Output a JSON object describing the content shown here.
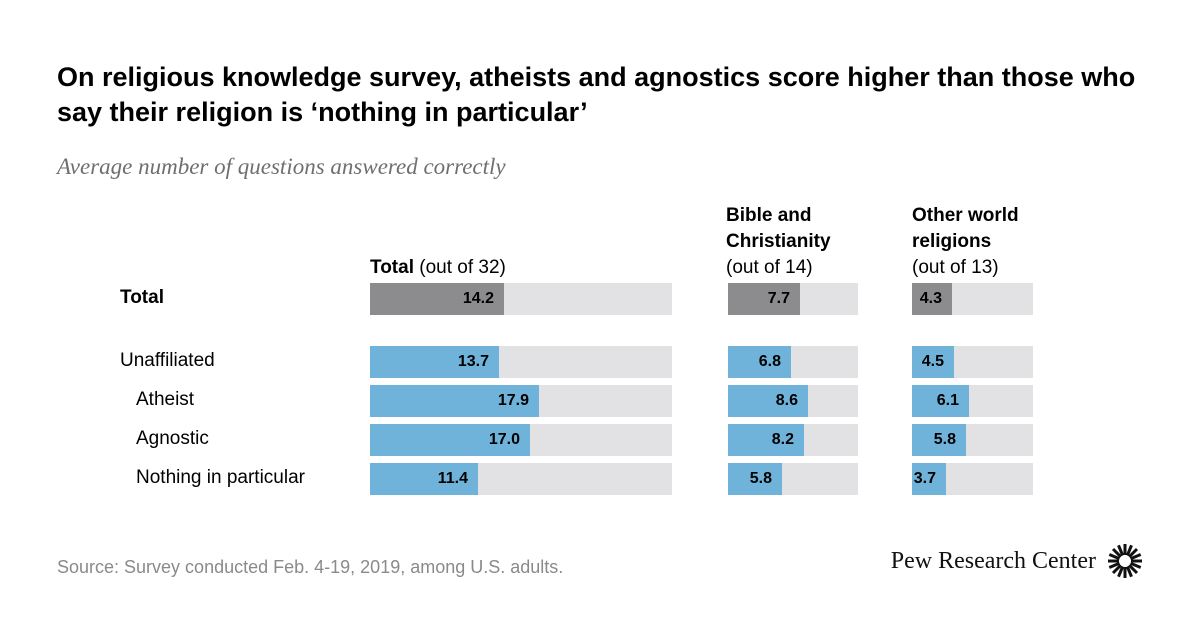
{
  "title": "On religious knowledge survey, atheists and agnostics score higher than those who say their religion is ‘nothing in particular’",
  "subtitle": "Average number of questions answered correctly",
  "source": "Source: Survey conducted Feb. 4-19, 2019, among U.S. adults.",
  "logo_text": "Pew Research Center",
  "colors": {
    "total_bar": "#8c8c8e",
    "group_bar": "#6fb3db",
    "track": "#e2e2e4"
  },
  "chart_data": {
    "type": "bar",
    "orientation": "horizontal",
    "categories": [
      "Total",
      "Unaffiliated",
      "Atheist",
      "Agnostic",
      "Nothing in particular"
    ],
    "panels": [
      {
        "key": "total",
        "title": "Total",
        "subtitle": "(out of 32)",
        "max": 32,
        "values": [
          14.2,
          13.7,
          17.9,
          17.0,
          11.4
        ],
        "labels": [
          "14.2",
          "13.7",
          "17.9",
          "17.0",
          "11.4"
        ]
      },
      {
        "key": "bible",
        "title": "Bible and Christianity",
        "title_line1": "Bible and",
        "title_line2": "Christianity",
        "subtitle": "(out of 14)",
        "max": 14,
        "values": [
          7.7,
          6.8,
          8.6,
          8.2,
          5.8
        ],
        "labels": [
          "7.7",
          "6.8",
          "8.6",
          "8.2",
          "5.8"
        ]
      },
      {
        "key": "world",
        "title": "Other world religions",
        "title_line1": "Other world",
        "title_line2": "religions",
        "subtitle": "(out of 13)",
        "max": 13,
        "values": [
          4.3,
          4.5,
          6.1,
          5.8,
          3.7
        ],
        "labels": [
          "4.3",
          "4.5",
          "6.1",
          "5.8",
          "3.7"
        ]
      }
    ]
  }
}
